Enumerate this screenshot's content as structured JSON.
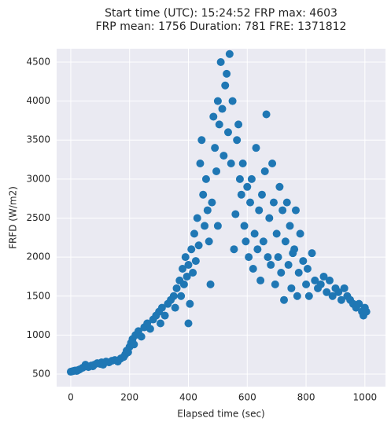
{
  "chart_data": {
    "type": "scatter",
    "title": [
      "Start time (UTC): 15:24:52 FRP max: 4603",
      "FRP mean: 1756 Duration: 781 FRE: 1371812"
    ],
    "xlabel": "Elapsed time (sec)",
    "ylabel": "FRFD (W/m2)",
    "color": "#1f77b4",
    "grid": true,
    "xlim": [
      -48,
      1070
    ],
    "ylim": [
      339,
      4671
    ],
    "xticks": [
      0,
      200,
      400,
      600,
      800,
      1000
    ],
    "yticks": [
      500,
      1000,
      1500,
      2000,
      2500,
      3000,
      3500,
      4000,
      4500
    ],
    "x": [
      0,
      5,
      10,
      15,
      20,
      25,
      30,
      40,
      50,
      55,
      60,
      70,
      75,
      80,
      90,
      100,
      105,
      110,
      120,
      130,
      140,
      150,
      160,
      170,
      180,
      185,
      190,
      195,
      200,
      205,
      210,
      215,
      220,
      230,
      240,
      250,
      260,
      270,
      280,
      290,
      300,
      305,
      310,
      320,
      330,
      340,
      350,
      355,
      360,
      370,
      375,
      380,
      385,
      390,
      395,
      400,
      400,
      405,
      410,
      415,
      420,
      425,
      430,
      435,
      440,
      445,
      450,
      455,
      460,
      465,
      470,
      475,
      480,
      485,
      490,
      495,
      500,
      500,
      505,
      510,
      515,
      520,
      525,
      530,
      535,
      540,
      545,
      550,
      555,
      560,
      565,
      570,
      575,
      580,
      585,
      590,
      595,
      600,
      605,
      610,
      615,
      620,
      625,
      630,
      635,
      640,
      645,
      650,
      655,
      660,
      665,
      670,
      675,
      680,
      685,
      690,
      695,
      700,
      705,
      710,
      715,
      720,
      725,
      730,
      735,
      740,
      745,
      750,
      755,
      760,
      765,
      770,
      775,
      780,
      790,
      800,
      805,
      810,
      820,
      830,
      840,
      850,
      860,
      870,
      880,
      890,
      900,
      910,
      920,
      930,
      940,
      950,
      960,
      970,
      980,
      990,
      995,
      1000,
      1005
    ],
    "y": [
      530,
      535,
      540,
      545,
      540,
      550,
      560,
      580,
      620,
      600,
      590,
      610,
      600,
      620,
      640,
      630,
      650,
      620,
      660,
      650,
      670,
      680,
      660,
      700,
      720,
      750,
      800,
      780,
      850,
      900,
      950,
      880,
      1000,
      1050,
      980,
      1100,
      1150,
      1080,
      1200,
      1250,
      1300,
      1150,
      1350,
      1250,
      1400,
      1450,
      1500,
      1350,
      1600,
      1700,
      1500,
      1850,
      1650,
      2000,
      1750,
      1900,
      1150,
      1400,
      2100,
      1800,
      2300,
      1950,
      2500,
      2150,
      3200,
      3500,
      2800,
      2400,
      3000,
      2600,
      2200,
      1650,
      2700,
      3800,
      3400,
      3100,
      4000,
      2400,
      3700,
      4500,
      3900,
      3300,
      4200,
      4350,
      3600,
      4603,
      3200,
      4000,
      2100,
      2550,
      3500,
      3700,
      3000,
      2800,
      3200,
      2400,
      2200,
      2900,
      2000,
      2700,
      3000,
      1850,
      2300,
      3400,
      2100,
      2600,
      1700,
      2800,
      2200,
      3100,
      3830,
      2000,
      2500,
      1900,
      3200,
      2700,
      1650,
      2300,
      2000,
      2900,
      1800,
      2600,
      1450,
      2200,
      2700,
      1900,
      2400,
      1600,
      2050,
      2100,
      2600,
      1500,
      1800,
      2300,
      1950,
      1650,
      1850,
      1500,
      2050,
      1700,
      1600,
      1650,
      1750,
      1550,
      1700,
      1500,
      1600,
      1550,
      1450,
      1600,
      1500,
      1450,
      1400,
      1350,
      1400,
      1300,
      1250,
      1350,
      1300
    ]
  }
}
